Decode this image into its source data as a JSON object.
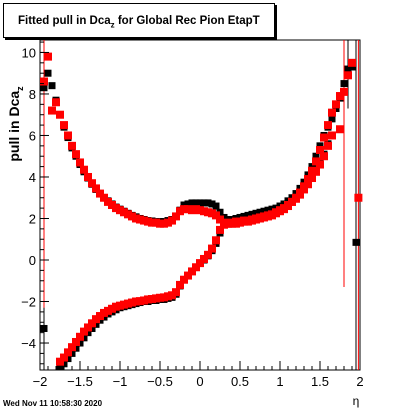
{
  "title": {
    "main": "Fitted pull in Dca",
    "sub": "z",
    "rest": " for Global Rec Pion EtapT"
  },
  "footer": {
    "timestamp": "Wed Nov 11 10:58:30 2020"
  },
  "chart_data": {
    "type": "scatter",
    "xlabel": "η",
    "ylabel_main": "pull in Dca",
    "ylabel_sub": "z",
    "xlim": [
      -2,
      2
    ],
    "ylim": [
      -5.3,
      10.6
    ],
    "xticks": [
      -2,
      -1.5,
      -1,
      -0.5,
      0,
      0.5,
      1,
      1.5,
      2
    ],
    "xtick_labels": [
      "−2",
      "−1.5",
      "−1",
      "−0.5",
      "0",
      "0.5",
      "1",
      "1.5",
      "2"
    ],
    "yticks": [
      -4,
      -2,
      0,
      2,
      4,
      6,
      8,
      10
    ],
    "ytick_labels": [
      "−4",
      "−2",
      "0",
      "2",
      "4",
      "6",
      "8",
      "10"
    ],
    "colors": {
      "black_series": "#000000",
      "red_series": "#ff0000"
    },
    "series": [
      {
        "color": "#000000",
        "marker": "square",
        "points": [
          [
            -1.95,
            8.3
          ],
          [
            -1.9,
            9.0
          ],
          [
            -1.85,
            8.4
          ],
          [
            -1.8,
            7.7
          ],
          [
            -1.75,
            7.0
          ],
          [
            -1.7,
            6.4
          ],
          [
            -1.65,
            5.9
          ],
          [
            -1.6,
            5.4
          ],
          [
            -1.55,
            5.0
          ],
          [
            -1.5,
            4.6
          ],
          [
            -1.45,
            4.25
          ],
          [
            -1.4,
            3.95
          ],
          [
            -1.35,
            3.65
          ],
          [
            -1.3,
            3.4
          ],
          [
            -1.25,
            3.2
          ],
          [
            -1.2,
            3.0
          ],
          [
            -1.15,
            2.85
          ],
          [
            -1.1,
            2.7
          ],
          [
            -1.05,
            2.55
          ],
          [
            -1.0,
            2.45
          ],
          [
            -0.95,
            2.35
          ],
          [
            -0.9,
            2.25
          ],
          [
            -0.85,
            2.15
          ],
          [
            -0.8,
            2.08
          ],
          [
            -0.75,
            2.0
          ],
          [
            -0.7,
            1.95
          ],
          [
            -0.65,
            1.9
          ],
          [
            -0.6,
            1.88
          ],
          [
            -0.55,
            1.85
          ],
          [
            -0.5,
            1.85
          ],
          [
            -0.45,
            1.85
          ],
          [
            -0.4,
            1.9
          ],
          [
            -0.35,
            1.95
          ],
          [
            -0.3,
            2.1
          ],
          [
            -0.25,
            2.4
          ],
          [
            -0.2,
            2.65
          ],
          [
            -0.15,
            2.7
          ],
          [
            -0.1,
            2.75
          ],
          [
            -0.05,
            2.75
          ],
          [
            0.0,
            2.75
          ],
          [
            0.05,
            2.75
          ],
          [
            0.1,
            2.75
          ],
          [
            0.15,
            2.7
          ],
          [
            0.2,
            2.6
          ],
          [
            0.25,
            2.3
          ],
          [
            0.3,
            2.05
          ],
          [
            0.35,
            1.95
          ],
          [
            0.4,
            1.95
          ],
          [
            0.45,
            2.0
          ],
          [
            0.5,
            2.05
          ],
          [
            0.55,
            2.1
          ],
          [
            0.6,
            2.15
          ],
          [
            0.65,
            2.2
          ],
          [
            0.7,
            2.25
          ],
          [
            0.75,
            2.3
          ],
          [
            0.8,
            2.35
          ],
          [
            0.85,
            2.4
          ],
          [
            0.9,
            2.45
          ],
          [
            0.95,
            2.5
          ],
          [
            1.0,
            2.6
          ],
          [
            1.05,
            2.7
          ],
          [
            1.1,
            2.85
          ],
          [
            1.15,
            3.0
          ],
          [
            1.2,
            3.2
          ],
          [
            1.25,
            3.45
          ],
          [
            1.3,
            3.75
          ],
          [
            1.35,
            4.1
          ],
          [
            1.4,
            4.5
          ],
          [
            1.45,
            5.0
          ],
          [
            1.5,
            5.5
          ],
          [
            1.55,
            6.0
          ],
          [
            1.6,
            6.4
          ],
          [
            1.65,
            6.8
          ],
          [
            1.7,
            7.3
          ],
          [
            1.75,
            7.8
          ],
          [
            1.8,
            8.5
          ],
          [
            1.85,
            9.2
          ],
          [
            1.9,
            9.3
          ],
          [
            -1.95,
            -3.3
          ],
          [
            -1.75,
            -5.15
          ],
          [
            -1.7,
            -5.0
          ],
          [
            -1.65,
            -4.75
          ],
          [
            -1.6,
            -4.5
          ],
          [
            -1.55,
            -4.25
          ],
          [
            -1.5,
            -4.0
          ],
          [
            -1.45,
            -3.75
          ],
          [
            -1.4,
            -3.5
          ],
          [
            -1.35,
            -3.3
          ],
          [
            -1.3,
            -3.1
          ],
          [
            -1.25,
            -2.9
          ],
          [
            -1.2,
            -2.75
          ],
          [
            -1.15,
            -2.6
          ],
          [
            -1.1,
            -2.5
          ],
          [
            -1.05,
            -2.4
          ],
          [
            -1.0,
            -2.3
          ],
          [
            -0.95,
            -2.25
          ],
          [
            -0.9,
            -2.2
          ],
          [
            -0.85,
            -2.15
          ],
          [
            -0.8,
            -2.1
          ],
          [
            -0.75,
            -2.05
          ],
          [
            -0.7,
            -2.0
          ],
          [
            -0.65,
            -2.0
          ],
          [
            -0.6,
            -1.95
          ],
          [
            -0.55,
            -1.95
          ],
          [
            -0.5,
            -1.9
          ],
          [
            -0.45,
            -1.9
          ],
          [
            -0.4,
            -1.85
          ],
          [
            -0.35,
            -1.8
          ],
          [
            -0.3,
            -1.65
          ],
          [
            -0.25,
            -1.25
          ],
          [
            -0.2,
            -0.95
          ],
          [
            -0.15,
            -0.75
          ],
          [
            -0.1,
            -0.55
          ],
          [
            -0.05,
            -0.35
          ],
          [
            0.0,
            -0.15
          ],
          [
            0.05,
            0.0
          ],
          [
            0.1,
            0.2
          ],
          [
            0.15,
            0.45
          ],
          [
            0.2,
            0.8
          ],
          [
            0.25,
            1.3
          ],
          [
            0.3,
            1.7
          ],
          [
            0.35,
            1.8
          ],
          [
            0.4,
            1.85
          ],
          [
            0.45,
            1.9
          ],
          [
            0.5,
            1.9
          ],
          [
            0.55,
            1.95
          ],
          [
            0.6,
            1.95
          ],
          [
            0.65,
            2.0
          ],
          [
            0.7,
            2.05
          ],
          [
            0.75,
            2.1
          ],
          [
            0.8,
            2.15
          ],
          [
            0.85,
            2.2
          ],
          [
            0.9,
            2.25
          ],
          [
            0.95,
            2.35
          ],
          [
            1.0,
            2.45
          ],
          [
            1.05,
            2.55
          ],
          [
            1.1,
            2.7
          ],
          [
            1.15,
            2.85
          ],
          [
            1.2,
            3.0
          ],
          [
            1.25,
            3.25
          ],
          [
            1.3,
            3.5
          ],
          [
            1.35,
            3.8
          ],
          [
            1.4,
            4.1
          ],
          [
            1.45,
            4.4
          ],
          [
            1.5,
            4.7
          ],
          [
            1.55,
            5.1
          ],
          [
            1.6,
            5.6
          ],
          [
            1.95,
            0.85
          ]
        ]
      },
      {
        "color": "#ff0000",
        "marker": "square",
        "points": [
          [
            -1.95,
            8.6
          ],
          [
            -1.9,
            9.8
          ],
          [
            -1.85,
            7.2
          ],
          [
            -1.8,
            7.6
          ],
          [
            -1.75,
            7.0
          ],
          [
            -1.7,
            6.5
          ],
          [
            -1.65,
            6.0
          ],
          [
            -1.6,
            5.5
          ],
          [
            -1.55,
            5.1
          ],
          [
            -1.5,
            4.7
          ],
          [
            -1.45,
            4.35
          ],
          [
            -1.4,
            4.0
          ],
          [
            -1.35,
            3.7
          ],
          [
            -1.3,
            3.45
          ],
          [
            -1.25,
            3.2
          ],
          [
            -1.2,
            3.0
          ],
          [
            -1.15,
            2.8
          ],
          [
            -1.1,
            2.65
          ],
          [
            -1.05,
            2.5
          ],
          [
            -1.0,
            2.4
          ],
          [
            -0.95,
            2.3
          ],
          [
            -0.9,
            2.2
          ],
          [
            -0.85,
            2.1
          ],
          [
            -0.8,
            2.0
          ],
          [
            -0.75,
            1.95
          ],
          [
            -0.7,
            1.9
          ],
          [
            -0.65,
            1.85
          ],
          [
            -0.6,
            1.8
          ],
          [
            -0.55,
            1.8
          ],
          [
            -0.5,
            1.75
          ],
          [
            -0.45,
            1.75
          ],
          [
            -0.4,
            1.8
          ],
          [
            -0.35,
            1.9
          ],
          [
            -0.3,
            2.1
          ],
          [
            -0.25,
            2.35
          ],
          [
            -0.2,
            2.45
          ],
          [
            -0.15,
            2.45
          ],
          [
            -0.1,
            2.4
          ],
          [
            -0.05,
            2.45
          ],
          [
            0.0,
            2.4
          ],
          [
            0.05,
            2.35
          ],
          [
            0.1,
            2.3
          ],
          [
            0.15,
            2.25
          ],
          [
            0.2,
            2.15
          ],
          [
            0.25,
            1.95
          ],
          [
            0.3,
            1.8
          ],
          [
            0.35,
            1.75
          ],
          [
            0.4,
            1.75
          ],
          [
            0.45,
            1.75
          ],
          [
            0.5,
            1.8
          ],
          [
            0.55,
            1.85
          ],
          [
            0.6,
            1.85
          ],
          [
            0.65,
            1.9
          ],
          [
            0.7,
            1.95
          ],
          [
            0.75,
            2.0
          ],
          [
            0.8,
            2.05
          ],
          [
            0.85,
            2.1
          ],
          [
            0.9,
            2.15
          ],
          [
            0.95,
            2.25
          ],
          [
            1.0,
            2.35
          ],
          [
            1.05,
            2.45
          ],
          [
            1.1,
            2.6
          ],
          [
            1.15,
            2.8
          ],
          [
            1.2,
            3.0
          ],
          [
            1.25,
            3.25
          ],
          [
            1.3,
            3.55
          ],
          [
            1.35,
            3.9
          ],
          [
            1.4,
            4.3
          ],
          [
            1.45,
            4.75
          ],
          [
            1.5,
            5.3
          ],
          [
            1.55,
            5.9
          ],
          [
            1.6,
            6.5
          ],
          [
            1.65,
            7.1
          ],
          [
            1.7,
            7.5
          ],
          [
            1.75,
            7.9
          ],
          [
            1.8,
            8.1
          ],
          [
            1.85,
            8.9
          ],
          [
            1.9,
            9.5
          ],
          [
            -1.75,
            -4.9
          ],
          [
            -1.7,
            -4.7
          ],
          [
            -1.65,
            -4.45
          ],
          [
            -1.6,
            -4.2
          ],
          [
            -1.55,
            -3.95
          ],
          [
            -1.5,
            -3.7
          ],
          [
            -1.45,
            -3.45
          ],
          [
            -1.4,
            -3.25
          ],
          [
            -1.35,
            -3.05
          ],
          [
            -1.3,
            -2.85
          ],
          [
            -1.25,
            -2.7
          ],
          [
            -1.2,
            -2.55
          ],
          [
            -1.15,
            -2.45
          ],
          [
            -1.1,
            -2.35
          ],
          [
            -1.05,
            -2.25
          ],
          [
            -1.0,
            -2.2
          ],
          [
            -0.95,
            -2.15
          ],
          [
            -0.9,
            -2.1
          ],
          [
            -0.85,
            -2.05
          ],
          [
            -0.8,
            -2.0
          ],
          [
            -0.75,
            -1.98
          ],
          [
            -0.7,
            -1.95
          ],
          [
            -0.65,
            -1.9
          ],
          [
            -0.6,
            -1.88
          ],
          [
            -0.55,
            -1.85
          ],
          [
            -0.5,
            -1.82
          ],
          [
            -0.45,
            -1.8
          ],
          [
            -0.4,
            -1.75
          ],
          [
            -0.35,
            -1.7
          ],
          [
            -0.3,
            -1.55
          ],
          [
            -0.25,
            -1.2
          ],
          [
            -0.2,
            -0.95
          ],
          [
            -0.15,
            -0.75
          ],
          [
            -0.1,
            -0.55
          ],
          [
            -0.05,
            -0.35
          ],
          [
            0.0,
            -0.15
          ],
          [
            0.05,
            0.05
          ],
          [
            0.1,
            0.25
          ],
          [
            0.15,
            0.55
          ],
          [
            0.2,
            0.95
          ],
          [
            0.25,
            1.45
          ],
          [
            0.3,
            1.7
          ],
          [
            0.35,
            1.75
          ],
          [
            0.4,
            1.8
          ],
          [
            0.45,
            1.85
          ],
          [
            0.5,
            1.85
          ],
          [
            0.55,
            1.9
          ],
          [
            0.6,
            1.9
          ],
          [
            0.65,
            1.95
          ],
          [
            0.7,
            2.0
          ],
          [
            0.75,
            2.05
          ],
          [
            0.8,
            2.1
          ],
          [
            0.85,
            2.15
          ],
          [
            0.9,
            2.2
          ],
          [
            0.95,
            2.3
          ],
          [
            1.0,
            2.4
          ],
          [
            1.05,
            2.5
          ],
          [
            1.1,
            2.65
          ],
          [
            1.15,
            2.8
          ],
          [
            1.2,
            2.95
          ],
          [
            1.25,
            3.15
          ],
          [
            1.3,
            3.4
          ],
          [
            1.35,
            3.65
          ],
          [
            1.4,
            3.95
          ],
          [
            1.45,
            4.25
          ],
          [
            1.5,
            4.6
          ],
          [
            1.55,
            5.0
          ],
          [
            1.6,
            5.5
          ],
          [
            1.65,
            6.0
          ],
          [
            1.75,
            6.3
          ],
          [
            1.98,
            3.0
          ]
        ]
      }
    ],
    "error_bars": [
      {
        "color": "#ff0000",
        "x": -1.95,
        "y": 8.6,
        "ylow": -5.3,
        "yhigh": 10.6
      },
      {
        "color": "#000000",
        "x": -1.95,
        "y": -3.3,
        "ylow": -5.3,
        "yhigh": -2.3
      },
      {
        "color": "#ff0000",
        "x": 1.8,
        "y": 8.1,
        "ylow": -1.3,
        "yhigh": 10.6
      },
      {
        "color": "#000000",
        "x": 1.85,
        "y": 9.2,
        "ylow": 7.3,
        "yhigh": 10.6
      },
      {
        "color": "#000000",
        "x": 1.95,
        "y": 0.85,
        "ylow": -5.3,
        "yhigh": 10.6
      },
      {
        "color": "#ff0000",
        "x": 1.98,
        "y": 3.0,
        "ylow": -5.3,
        "yhigh": 10.6
      }
    ]
  }
}
